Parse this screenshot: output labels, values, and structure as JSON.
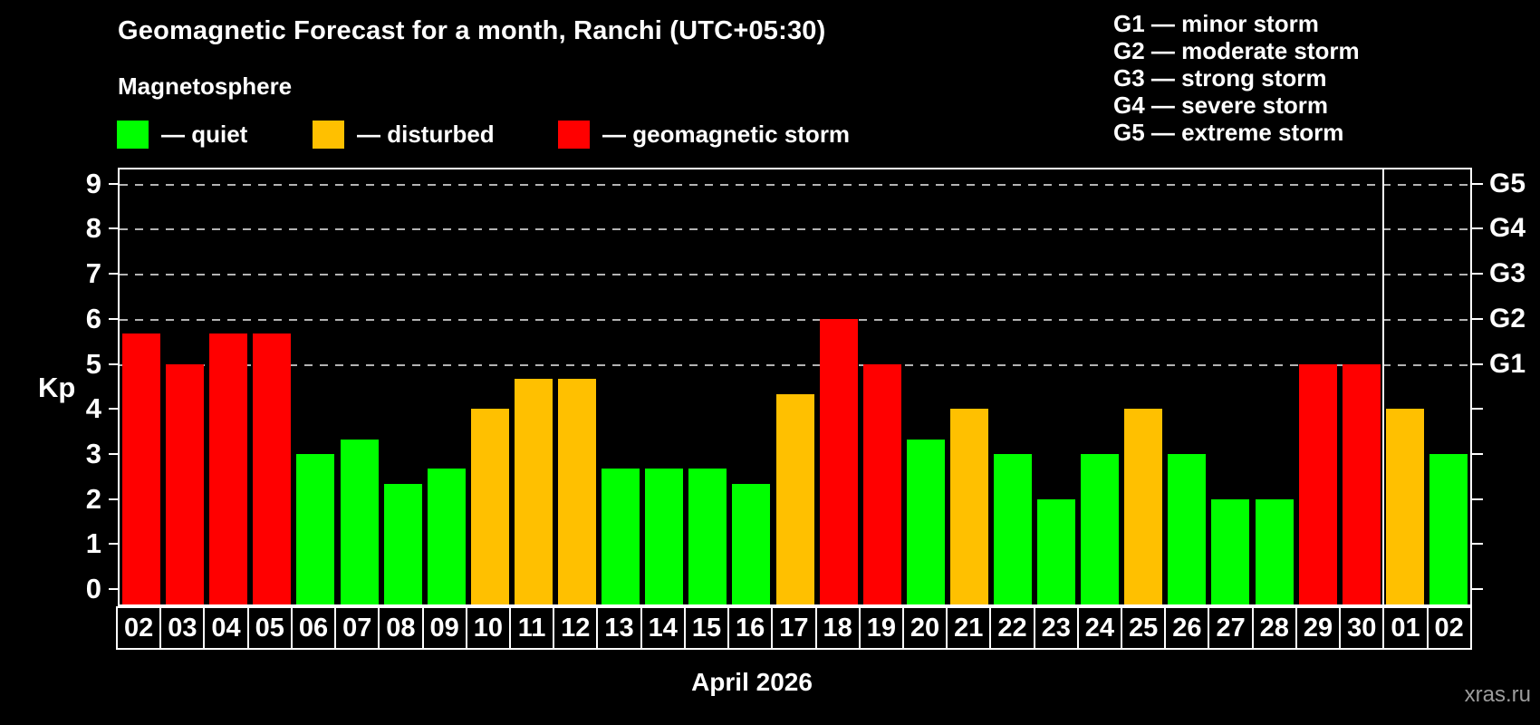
{
  "header": {
    "title": "Geomagnetic Forecast for a month, Ranchi (UTC+05:30)",
    "subtitle": "Magnetosphere"
  },
  "legend": {
    "items": [
      {
        "label": "— quiet",
        "color": "#00ff00"
      },
      {
        "label": "— disturbed",
        "color": "#ffc000"
      },
      {
        "label": "— geomagnetic storm",
        "color": "#ff0000"
      }
    ]
  },
  "storm_legend": {
    "items": [
      "G1 — minor storm",
      "G2 — moderate storm",
      "G3 — strong storm",
      "G4 — severe storm",
      "G5 — extreme storm"
    ]
  },
  "chart_data": {
    "type": "bar",
    "title": "Geomagnetic Forecast for a month, Ranchi (UTC+05:30)",
    "ylabel": "Kp",
    "xlabel": "April 2026",
    "ylim": [
      0,
      9
    ],
    "yticks": [
      0,
      1,
      2,
      3,
      4,
      5,
      6,
      7,
      8,
      9
    ],
    "gridlines_at": [
      5,
      6,
      7,
      8,
      9
    ],
    "grid": "dashed horizontal at storm levels only",
    "right_axis": [
      {
        "kp": 5,
        "label": "G1"
      },
      {
        "kp": 6,
        "label": "G2"
      },
      {
        "kp": 7,
        "label": "G3"
      },
      {
        "kp": 8,
        "label": "G4"
      },
      {
        "kp": 9,
        "label": "G5"
      }
    ],
    "month_separator_after_index": 28,
    "categories": [
      "02",
      "03",
      "04",
      "05",
      "06",
      "07",
      "08",
      "09",
      "10",
      "11",
      "12",
      "13",
      "14",
      "15",
      "16",
      "17",
      "18",
      "19",
      "20",
      "21",
      "22",
      "23",
      "24",
      "25",
      "26",
      "27",
      "28",
      "29",
      "30",
      "01",
      "02"
    ],
    "values": [
      5.67,
      5,
      5.67,
      5.67,
      3,
      3.33,
      2.33,
      2.67,
      4,
      4.67,
      4.67,
      2.67,
      2.67,
      2.67,
      2.33,
      4.33,
      6,
      5,
      3.33,
      4,
      3,
      2,
      3,
      4,
      3,
      2,
      2,
      5,
      5,
      4,
      3
    ],
    "levels": [
      "storm",
      "storm",
      "storm",
      "storm",
      "quiet",
      "quiet",
      "quiet",
      "quiet",
      "disturbed",
      "disturbed",
      "disturbed",
      "quiet",
      "quiet",
      "quiet",
      "quiet",
      "disturbed",
      "storm",
      "storm",
      "quiet",
      "disturbed",
      "quiet",
      "quiet",
      "quiet",
      "disturbed",
      "quiet",
      "quiet",
      "quiet",
      "storm",
      "storm",
      "disturbed",
      "quiet"
    ],
    "colors_by_level": {
      "quiet": "#00ff00",
      "disturbed": "#ffc000",
      "storm": "#ff0000"
    }
  },
  "footer": {
    "month_label": "April 2026",
    "watermark": "xras.ru"
  }
}
